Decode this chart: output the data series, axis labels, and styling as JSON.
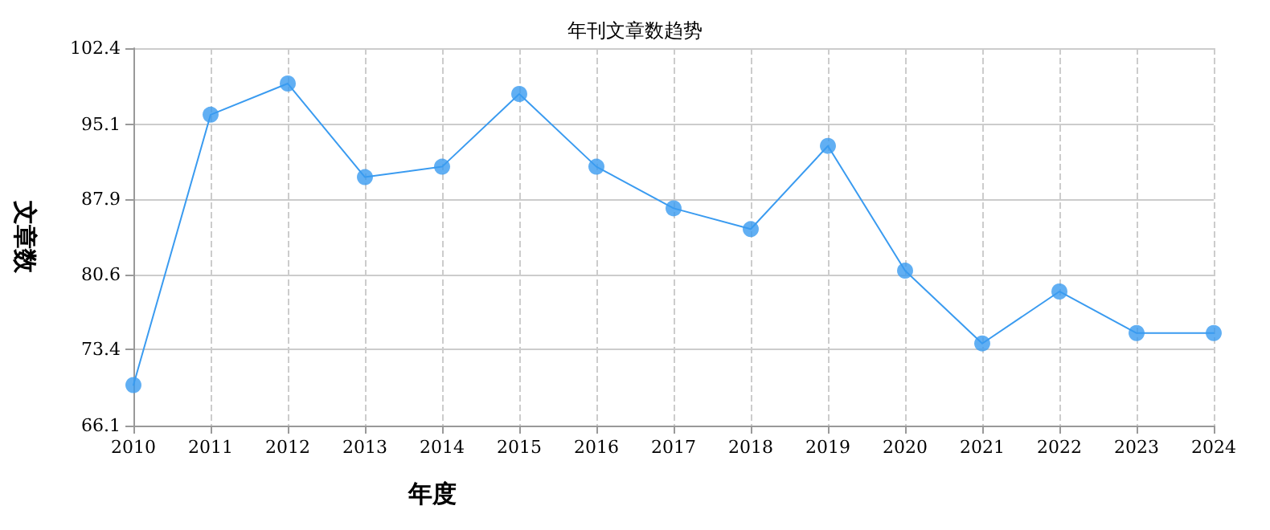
{
  "chart_data": {
    "type": "line",
    "title": "年刊文章数趋势",
    "xlabel": "年度",
    "ylabel": "文章数",
    "categories": [
      "2010",
      "2011",
      "2012",
      "2013",
      "2014",
      "2015",
      "2016",
      "2017",
      "2018",
      "2019",
      "2020",
      "2021",
      "2022",
      "2023",
      "2024"
    ],
    "series": [
      {
        "color": "#3a9bf0",
        "values": [
          70,
          96,
          99,
          90,
          91,
          98,
          91,
          87,
          85,
          93,
          81,
          74,
          79,
          75,
          75
        ]
      }
    ],
    "ylim": [
      66.1,
      102.4
    ],
    "yticks": [
      66.1,
      73.4,
      80.6,
      87.9,
      95.1,
      102.4
    ],
    "grid": true,
    "marker": "circle",
    "line_style": "solid"
  }
}
